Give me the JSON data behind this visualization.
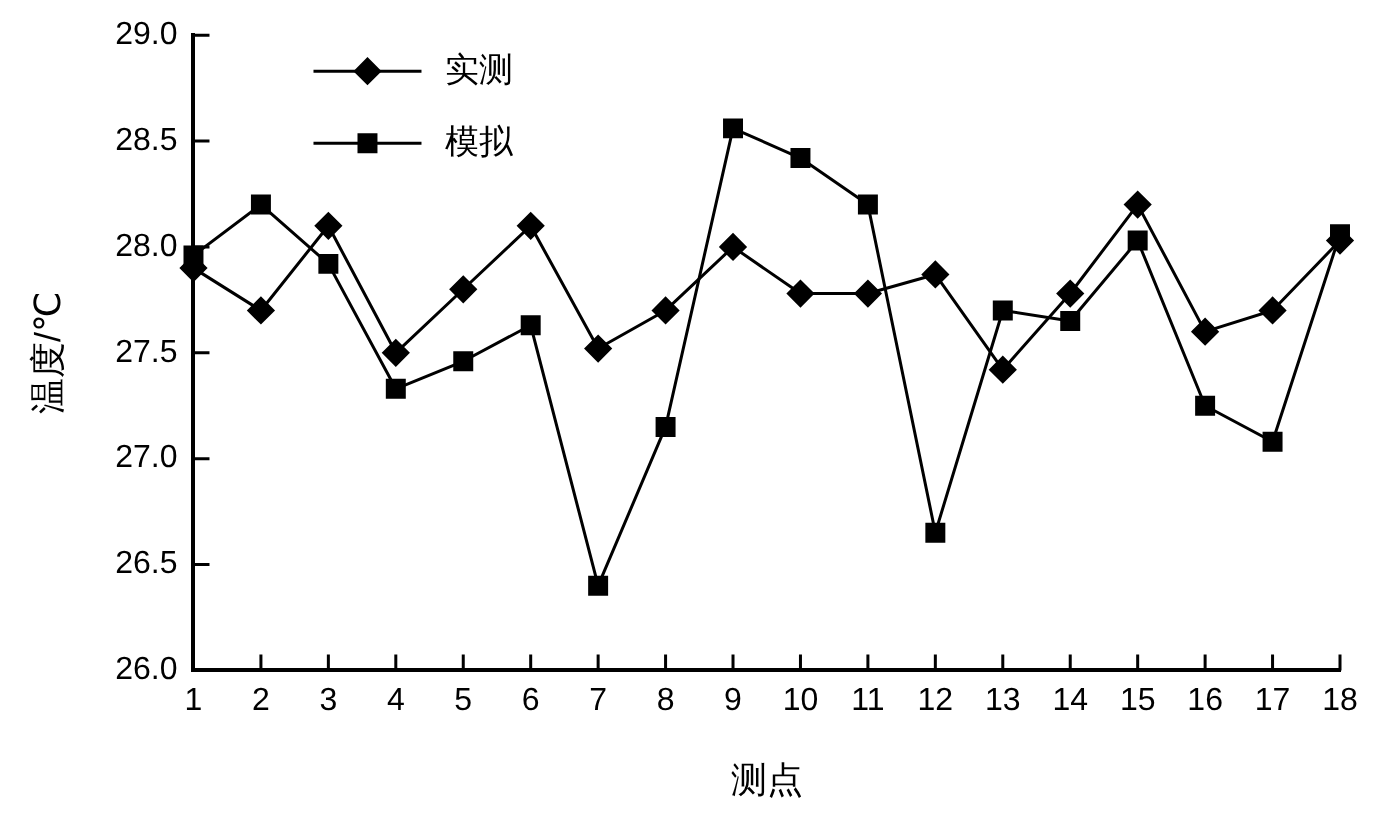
{
  "chart_data": {
    "type": "line",
    "xlabel": "测点",
    "ylabel": "温度/℃",
    "x": [
      1,
      2,
      3,
      4,
      5,
      6,
      7,
      8,
      9,
      10,
      11,
      12,
      13,
      14,
      15,
      16,
      17,
      18
    ],
    "xlim": [
      1,
      18
    ],
    "xticks": [
      1,
      2,
      3,
      4,
      5,
      6,
      7,
      8,
      9,
      10,
      11,
      12,
      13,
      14,
      15,
      16,
      17,
      18
    ],
    "ylim": [
      26.0,
      29.0
    ],
    "yticks": [
      {
        "value": 26,
        "label": "26.0"
      },
      {
        "value": 26.5,
        "label": "26.5"
      },
      {
        "value": 27,
        "label": "27.0"
      },
      {
        "value": 27.5,
        "label": "27.5"
      },
      {
        "value": 28,
        "label": "28.0"
      },
      {
        "value": 28.5,
        "label": "28.5"
      },
      {
        "value": 29,
        "label": "29.0"
      }
    ],
    "grid": false,
    "legend": "top left",
    "line_style": "solid",
    "series": [
      {
        "name": "实测",
        "color": "#000000",
        "marker": "diamond",
        "values": [
          27.9,
          27.7,
          28.1,
          27.5,
          27.8,
          28.1,
          27.52,
          27.7,
          28.0,
          27.78,
          27.78,
          27.87,
          27.42,
          27.78,
          28.2,
          27.6,
          27.7,
          28.03
        ]
      },
      {
        "name": "模拟",
        "color": "#000000",
        "marker": "square",
        "values": [
          27.96,
          28.2,
          27.92,
          27.33,
          27.46,
          27.63,
          26.4,
          27.15,
          28.56,
          28.42,
          28.2,
          26.65,
          27.7,
          27.65,
          28.03,
          27.25,
          27.08,
          28.06
        ]
      }
    ]
  }
}
